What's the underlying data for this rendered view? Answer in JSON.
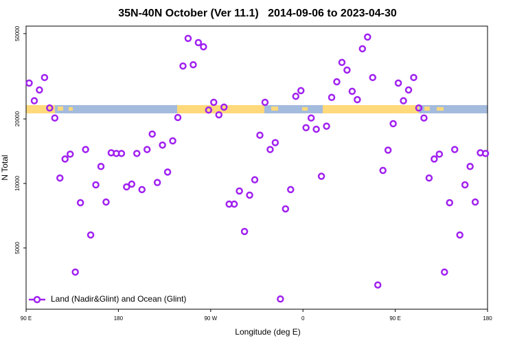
{
  "chart_data": {
    "type": "scatter",
    "title": "35N-40N October (Ver 11.1)   2014-09-06 to 2023-04-30",
    "x_label": "Longitude (deg E)",
    "y_label": "N Total",
    "xlim": [
      90,
      540
    ],
    "ylim": [
      2590,
      54200
    ],
    "log_y": true,
    "xticks": [
      {
        "value": 90,
        "label": "90 E"
      },
      180,
      {
        "value": 270,
        "label": "90 W"
      },
      {
        "value": 360,
        "label": "0"
      },
      {
        "value": 450,
        "label": "90 E"
      },
      {
        "value": 540,
        "label": "180"
      }
    ],
    "yticks": [
      5000,
      10000,
      20000,
      50000
    ],
    "legend": "bottom-left",
    "x": [
      93,
      98,
      103,
      108,
      113,
      118,
      123,
      128,
      133,
      138,
      143,
      148,
      153,
      158,
      163,
      168,
      173,
      178,
      183,
      188,
      193,
      198,
      203,
      208,
      213,
      218,
      223,
      228,
      233,
      238,
      243,
      248,
      253,
      258,
      263,
      268,
      273,
      278,
      283,
      288,
      293,
      298,
      303,
      308,
      313,
      318,
      323,
      328,
      333,
      338,
      343,
      348,
      353,
      358,
      363,
      368,
      373,
      378,
      383,
      388,
      393,
      398,
      403,
      408,
      413,
      418,
      423,
      428,
      433,
      438,
      443,
      448,
      453,
      458,
      463,
      468,
      473,
      478,
      483,
      488,
      493,
      498,
      503,
      508,
      513,
      518,
      523,
      528,
      533,
      538
    ],
    "series": [
      {
        "name": "Land (Nadir&Glint) and Ocean (Glint)",
        "color": "#a020f0",
        "values": [
          29400,
          24300,
          27300,
          31200,
          22500,
          20200,
          10600,
          13000,
          13700,
          3860,
          8130,
          14400,
          5750,
          9850,
          12000,
          8190,
          13900,
          13800,
          13800,
          9640,
          9930,
          13800,
          9360,
          14400,
          17000,
          10100,
          15100,
          11300,
          15800,
          20300,
          35300,
          47500,
          35800,
          45400,
          43400,
          22000,
          23900,
          20900,
          22700,
          8010,
          8010,
          9220,
          5970,
          8820,
          10400,
          16800,
          23900,
          14400,
          15500,
          2890,
          7610,
          9360,
          25500,
          27100,
          18200,
          20200,
          17900,
          10800,
          18500,
          25200,
          29800,
          36700,
          33800,
          26900,
          24600,
          42500,
          48200,
          31200,
          3360,
          11500,
          14300,
          19000,
          29400,
          24300,
          27300,
          31200,
          22500,
          20200,
          10600,
          13000,
          13700,
          3860,
          8130,
          14400,
          5750,
          9850,
          12000,
          8190,
          13900,
          13800
        ]
      }
    ]
  }
}
